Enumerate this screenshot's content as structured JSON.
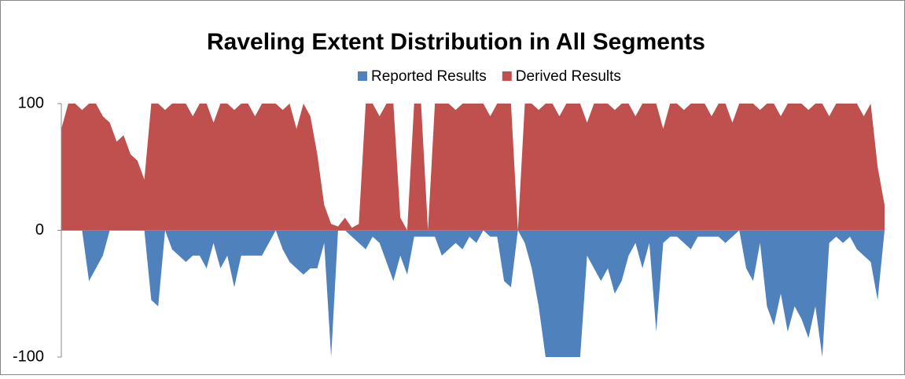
{
  "chart_data": {
    "type": "area",
    "title": "Raveling Extent Distribution in All Segments",
    "series": [
      {
        "name": "Reported Results",
        "color": "#4f81bd",
        "values": [
          0,
          0,
          0,
          0,
          -40,
          -30,
          -20,
          0,
          0,
          0,
          0,
          0,
          0,
          -55,
          -60,
          0,
          -15,
          -20,
          -25,
          -20,
          -20,
          -30,
          -10,
          -30,
          -20,
          -45,
          -20,
          -20,
          -20,
          -20,
          -10,
          0,
          -15,
          -25,
          -30,
          -35,
          -30,
          -30,
          -10,
          -100,
          0,
          0,
          -5,
          -10,
          -15,
          -5,
          -10,
          -25,
          -40,
          -20,
          -35,
          -5,
          -5,
          -5,
          -5,
          -20,
          -15,
          -10,
          -15,
          -5,
          -10,
          0,
          -5,
          -5,
          -40,
          -45,
          0,
          -10,
          -30,
          -60,
          -100,
          -100,
          -100,
          -100,
          -100,
          -100,
          -20,
          -30,
          -40,
          -30,
          -50,
          -40,
          -20,
          -10,
          -30,
          -10,
          -80,
          -10,
          -5,
          -5,
          -10,
          -15,
          -5,
          -5,
          -5,
          -5,
          -10,
          -5,
          0,
          -30,
          -40,
          -10,
          -60,
          -75,
          -50,
          -80,
          -60,
          -70,
          -85,
          -60,
          -100,
          -10,
          -5,
          -10,
          -5,
          -15,
          -20,
          -25,
          -55,
          0
        ]
      },
      {
        "name": "Derived Results",
        "color": "#c0504d",
        "values": [
          80,
          100,
          100,
          95,
          100,
          100,
          90,
          85,
          70,
          75,
          60,
          55,
          40,
          100,
          100,
          95,
          100,
          100,
          100,
          90,
          100,
          100,
          85,
          100,
          100,
          95,
          100,
          100,
          90,
          100,
          100,
          100,
          95,
          100,
          80,
          100,
          90,
          60,
          20,
          5,
          3,
          10,
          2,
          5,
          100,
          100,
          90,
          100,
          100,
          10,
          0,
          100,
          100,
          0,
          100,
          100,
          100,
          95,
          100,
          100,
          100,
          100,
          90,
          100,
          100,
          100,
          0,
          100,
          100,
          95,
          100,
          100,
          90,
          100,
          100,
          100,
          85,
          100,
          100,
          100,
          95,
          100,
          100,
          90,
          100,
          100,
          100,
          80,
          100,
          100,
          95,
          100,
          100,
          100,
          90,
          100,
          100,
          85,
          100,
          100,
          100,
          95,
          100,
          100,
          90,
          100,
          100,
          100,
          95,
          100,
          100,
          90,
          100,
          100,
          100,
          100,
          90,
          100,
          50,
          20
        ]
      }
    ],
    "ylim": [
      -100,
      100
    ],
    "yticks": [
      -100,
      0,
      100
    ],
    "grid": false
  }
}
